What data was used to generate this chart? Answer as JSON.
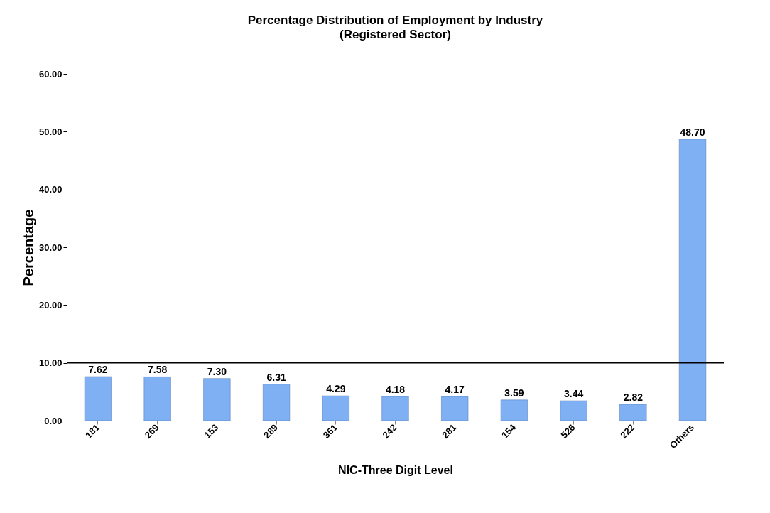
{
  "chart_data": {
    "type": "bar",
    "title": "Percentage Distribution of Employment by Industry",
    "subtitle": "(Registered Sector)",
    "xlabel": "NIC-Three Digit Level",
    "ylabel": "Percentage",
    "categories": [
      "181",
      "269",
      "153",
      "289",
      "361",
      "242",
      "281",
      "154",
      "526",
      "222",
      "Others"
    ],
    "values": [
      7.62,
      7.58,
      7.3,
      6.31,
      4.29,
      4.18,
      4.17,
      3.59,
      3.44,
      2.82,
      48.7
    ],
    "value_labels": [
      "7.62",
      "7.58",
      "7.30",
      "6.31",
      "4.29",
      "4.18",
      "4.17",
      "3.59",
      "3.44",
      "2.82",
      "48.70"
    ],
    "color": "#7fb0f4",
    "ylim": [
      0,
      60
    ],
    "yticks": [
      {
        "value": 0,
        "label": "0.00"
      },
      {
        "value": 10,
        "label": "10.00"
      },
      {
        "value": 20,
        "label": "20.00"
      },
      {
        "value": 30,
        "label": "30.00"
      },
      {
        "value": 40,
        "label": "40.00"
      },
      {
        "value": 50,
        "label": "50.00"
      },
      {
        "value": 60,
        "label": "60.00"
      }
    ],
    "ref_lines": [
      {
        "axis": "y",
        "value": 10,
        "color": "#000000"
      }
    ],
    "grid": false
  }
}
